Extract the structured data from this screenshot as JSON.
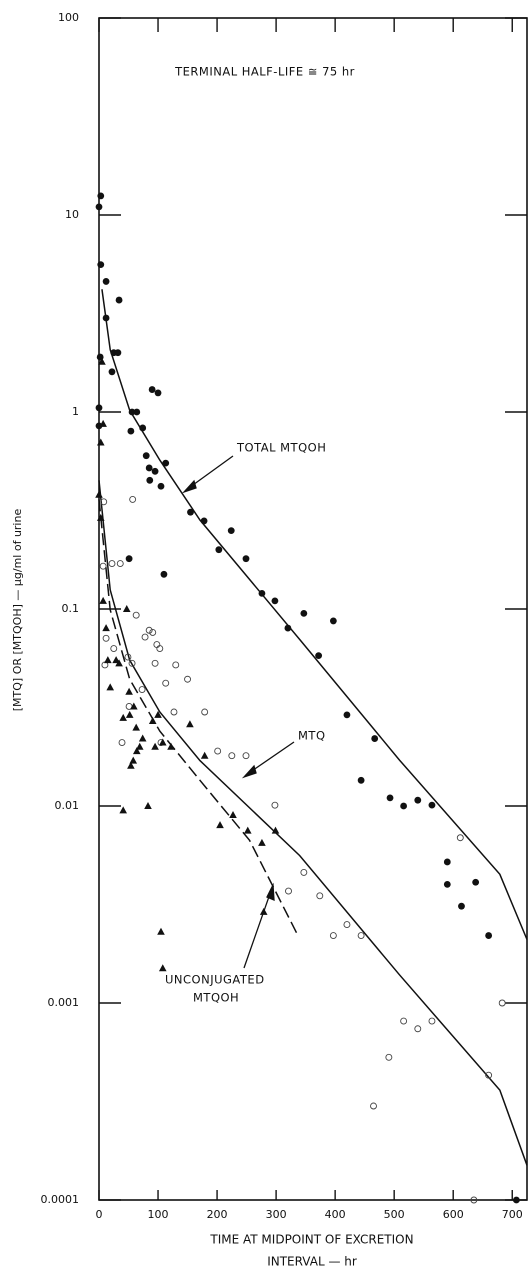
{
  "chart_data": {
    "type": "scatter",
    "y_label": "[MTQ] OR [MTQOH] — μg/ml of urine",
    "x_label": [
      "TIME AT MIDPOINT OF EXCRETION",
      "INTERVAL — hr"
    ],
    "annotations": [
      "TERMINAL HALF-LIFE ≅ 75 hr",
      "TOTAL MTQOH",
      "MTQ",
      "UNCONJUGATED",
      "MTQOH"
    ],
    "log_y": true,
    "xlim": [
      0,
      725
    ],
    "ylim": [
      0.0001,
      100
    ],
    "xticks": [
      0,
      100,
      200,
      300,
      400,
      500,
      600,
      700
    ],
    "yticks": [
      0.0001,
      0.001,
      0.01,
      0.1,
      1,
      10,
      100
    ],
    "series": [
      {
        "marker": "filled-circle",
        "color": "#111111",
        "x": [
          0,
          3,
          3,
          12,
          12,
          34,
          2,
          25,
          32,
          22,
          0,
          0,
          56,
          64,
          54,
          74,
          90,
          100,
          80,
          85,
          86,
          95,
          105,
          113,
          51,
          110,
          155,
          178,
          203,
          224,
          249,
          276,
          298,
          320,
          347,
          372,
          397,
          420,
          444,
          467,
          493,
          516,
          540,
          564,
          590,
          590,
          614,
          638,
          660,
          707
        ],
        "values": [
          11,
          12.5,
          5.6,
          4.6,
          3.0,
          3.7,
          1.9,
          2.0,
          2.0,
          1.6,
          1.05,
          0.85,
          1.0,
          1.0,
          0.8,
          0.83,
          1.3,
          1.25,
          0.6,
          0.52,
          0.45,
          0.5,
          0.42,
          0.55,
          0.18,
          0.15,
          0.31,
          0.28,
          0.2,
          0.25,
          0.18,
          0.12,
          0.11,
          0.08,
          0.095,
          0.058,
          0.087,
          0.029,
          0.0135,
          0.022,
          0.011,
          0.01,
          0.0107,
          0.0101,
          0.0052,
          0.004,
          0.0031,
          0.0041,
          0.0022,
          0.0001
        ]
      },
      {
        "marker": "open-circle",
        "color": "#444444",
        "x": [
          8,
          57,
          7,
          22,
          36,
          12,
          10,
          25,
          49,
          56,
          63,
          78,
          85,
          91,
          98,
          103,
          95,
          113,
          130,
          150,
          127,
          105,
          39,
          51,
          73,
          179,
          201,
          225,
          249,
          298,
          321,
          347,
          374,
          397,
          420,
          444,
          491,
          465,
          516,
          540,
          564,
          612,
          660,
          635,
          683
        ],
        "values": [
          0.35,
          0.36,
          0.165,
          0.17,
          0.17,
          0.071,
          0.052,
          0.063,
          0.057,
          0.053,
          0.093,
          0.072,
          0.078,
          0.076,
          0.066,
          0.063,
          0.053,
          0.042,
          0.052,
          0.044,
          0.03,
          0.021,
          0.021,
          0.032,
          0.039,
          0.03,
          0.019,
          0.018,
          0.018,
          0.0101,
          0.0037,
          0.0046,
          0.0035,
          0.0022,
          0.0025,
          0.0022,
          0.00053,
          0.0003,
          0.00081,
          0.00074,
          0.00081,
          0.0069,
          0.00043,
          0.0001,
          0.001
        ]
      },
      {
        "marker": "filled-triangle",
        "color": "#111111",
        "x": [
          0,
          3,
          5,
          7,
          3,
          7,
          12,
          15,
          19,
          29,
          34,
          41,
          41,
          47,
          51,
          52,
          59,
          63,
          54,
          58,
          64,
          69,
          74,
          83,
          91,
          100,
          95,
          108,
          122,
          154,
          179,
          205,
          227,
          252,
          276,
          299,
          279,
          105,
          108
        ],
        "values": [
          0.38,
          0.7,
          1.8,
          0.87,
          0.29,
          0.11,
          0.08,
          0.055,
          0.04,
          0.055,
          0.053,
          0.028,
          0.0095,
          0.1,
          0.038,
          0.029,
          0.032,
          0.025,
          0.016,
          0.017,
          0.019,
          0.02,
          0.022,
          0.01,
          0.027,
          0.029,
          0.02,
          0.021,
          0.02,
          0.026,
          0.018,
          0.008,
          0.009,
          0.0075,
          0.0065,
          0.0075,
          0.0029,
          0.0023,
          0.0015
        ]
      }
    ],
    "fits": [
      {
        "dashed": false,
        "x": [
          5,
          19,
          52,
          103,
          171,
          340,
          509,
          679,
          725
        ],
        "values": [
          4.2,
          2.07,
          1.02,
          0.57,
          0.283,
          0.07,
          0.0171,
          0.0045,
          0.0021
        ]
      },
      {
        "dashed": false,
        "x": [
          0,
          19,
          52,
          103,
          171,
          340,
          509,
          679,
          725
        ],
        "values": [
          0.45,
          0.125,
          0.055,
          0.03,
          0.017,
          0.0056,
          0.00139,
          0.000361,
          0.00015
        ]
      },
      {
        "dashed": true,
        "x": [
          0,
          19,
          52,
          103,
          171,
          255,
          337
        ],
        "values": [
          0.36,
          0.099,
          0.044,
          0.024,
          0.0135,
          0.0067,
          0.0022
        ]
      }
    ]
  }
}
